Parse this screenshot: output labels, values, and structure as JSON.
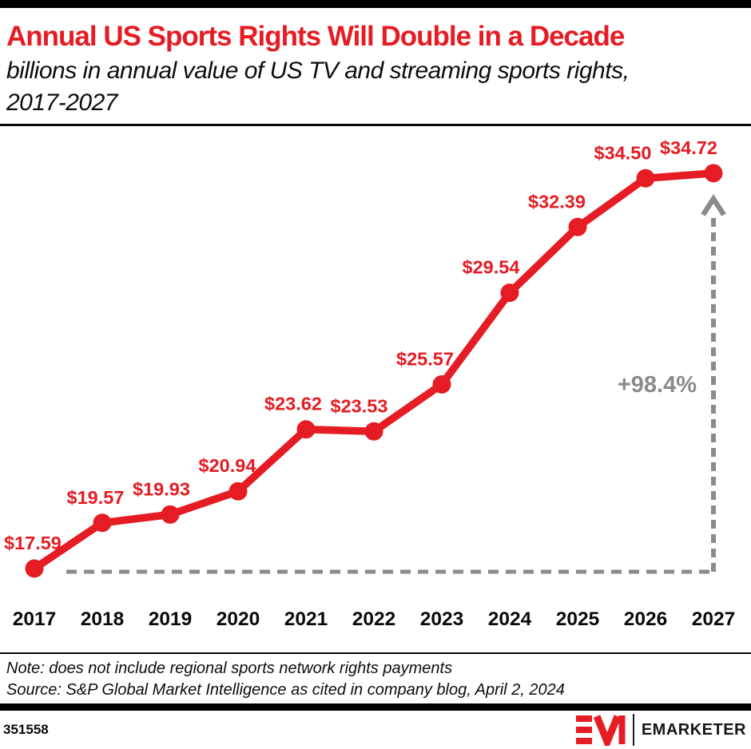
{
  "chart_data": {
    "type": "line",
    "title": "Annual US Sports Rights Will Double in a Decade",
    "subtitle": "billions in annual value of US TV and streaming sports rights, 2017-2027",
    "categories": [
      "2017",
      "2018",
      "2019",
      "2020",
      "2021",
      "2022",
      "2023",
      "2024",
      "2025",
      "2026",
      "2027"
    ],
    "values": [
      17.59,
      19.57,
      19.93,
      20.94,
      23.62,
      23.53,
      25.57,
      29.54,
      32.39,
      34.5,
      34.72
    ],
    "point_labels": [
      "$17.59",
      "$19.57",
      "$19.93",
      "$20.94",
      "$23.62",
      "$23.53",
      "$25.57",
      "$29.54",
      "$32.39",
      "$34.50",
      "$34.72"
    ],
    "annotation": "+98.4%",
    "xlabel": "",
    "ylabel": "",
    "ylim": [
      16.5,
      36.5
    ],
    "grid": false,
    "legend": "none",
    "line_color": "#e51c23",
    "point_label_color": "#e51c23",
    "axis_label_color": "#0a0a0a",
    "annotation_color": "#8b8b8b"
  },
  "notes": {
    "note": "Note: does not include regional sports network rights payments",
    "source": "Source: S&P Global Market Intelligence as cited in company blog, April 2, 2024"
  },
  "footer": {
    "chart_number": "351558",
    "logo_monogram": "EM",
    "logo_text": "EMARKETER"
  }
}
